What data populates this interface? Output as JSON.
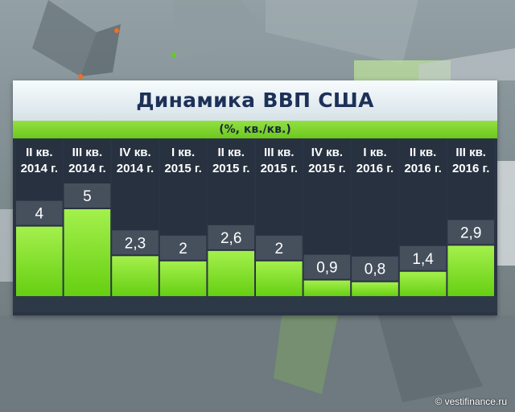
{
  "chart_data": {
    "type": "bar",
    "title": "Динамика ВВП США",
    "subtitle": "(%, кв./кв.)",
    "categories": [
      [
        "II кв.",
        "2014 г."
      ],
      [
        "III кв.",
        "2014 г."
      ],
      [
        "IV кв.",
        "2014 г."
      ],
      [
        "I кв.",
        "2015 г."
      ],
      [
        "II кв.",
        "2015 г."
      ],
      [
        "III кв.",
        "2015 г."
      ],
      [
        "IV кв.",
        "2015 г."
      ],
      [
        "I кв.",
        "2016 г."
      ],
      [
        "II кв.",
        "2016 г."
      ],
      [
        "III кв.",
        "2016 г."
      ]
    ],
    "values": [
      4,
      5,
      2.3,
      2,
      2.6,
      2,
      0.9,
      0.8,
      1.4,
      2.9
    ],
    "value_labels": [
      "4",
      "5",
      "2,3",
      "2",
      "2,6",
      "2",
      "0,9",
      "0,8",
      "1,4",
      "2,9"
    ],
    "ylim": [
      0,
      5
    ],
    "grid": false,
    "colors": {
      "bar": "#66cf12",
      "bar_light": "#a4f04c",
      "column_bg": "#273140",
      "label_bg": "#46505d",
      "header_text": "#ffffff"
    }
  },
  "watermark": "© vestifinance.ru"
}
